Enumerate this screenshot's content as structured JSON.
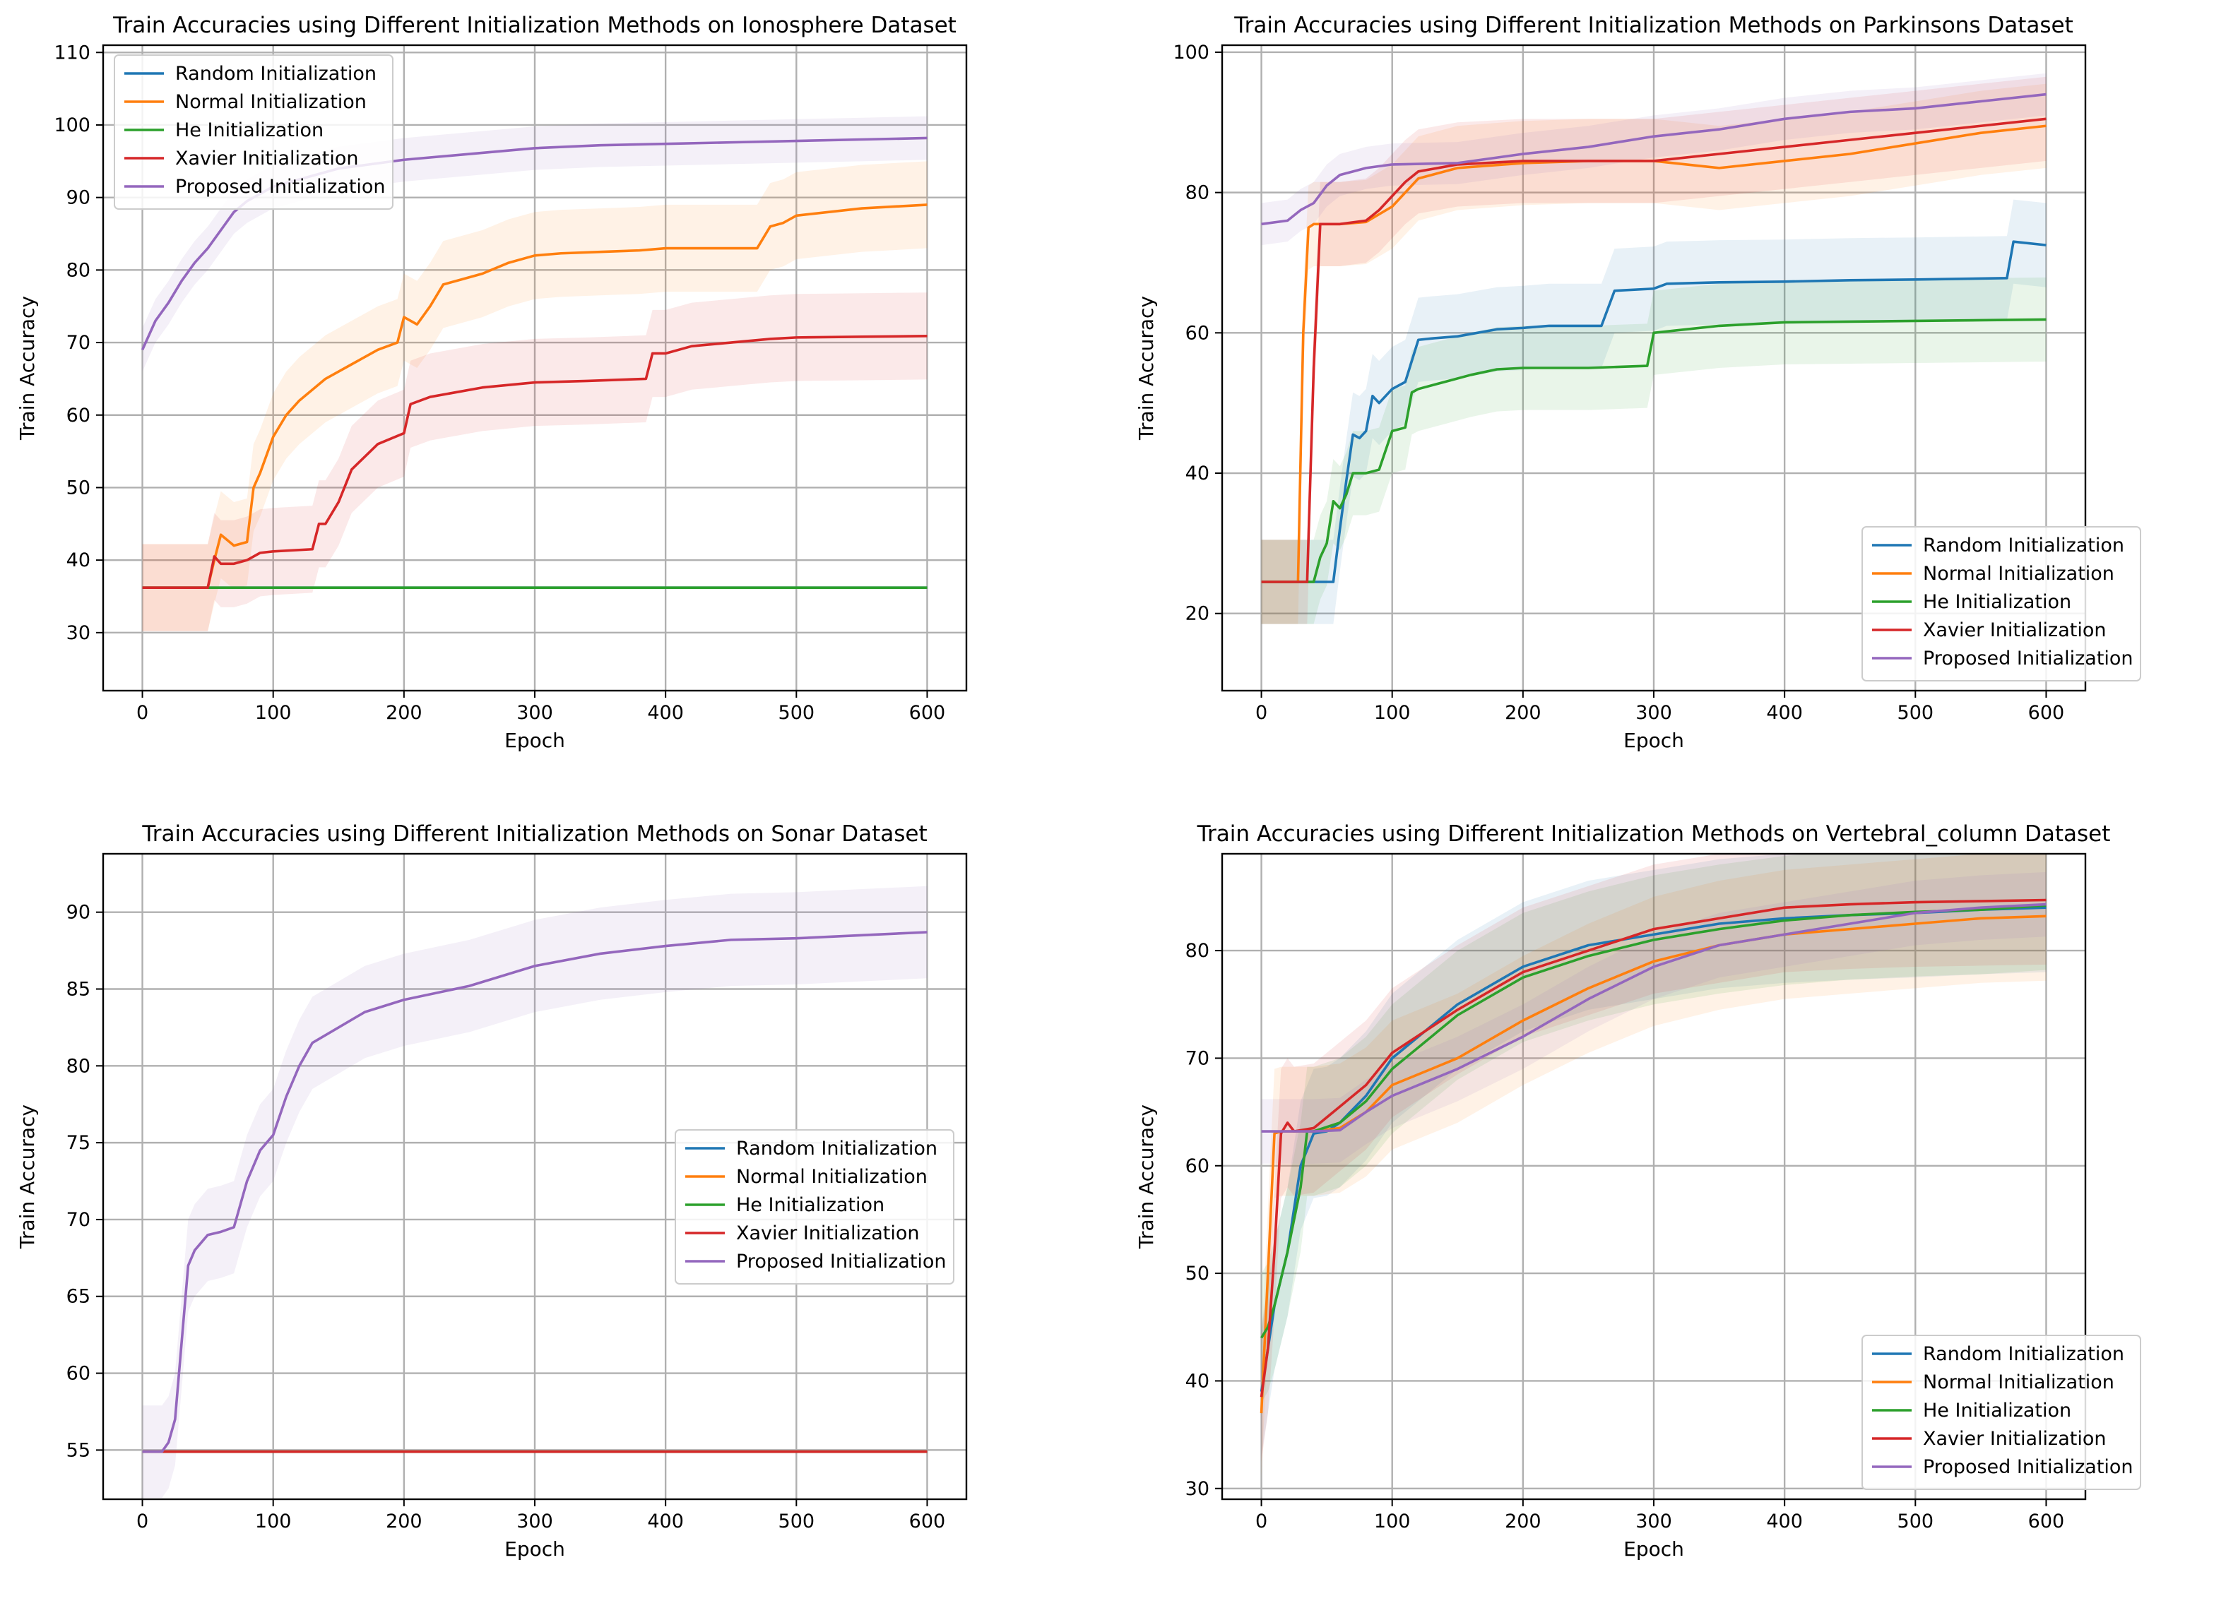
{
  "colors": {
    "random": "#1f77b4",
    "normal": "#ff7f0e",
    "he": "#2ca02c",
    "xavier": "#d62728",
    "proposed": "#9467bd",
    "grid": "#b0b0b0"
  },
  "chart_data": [
    {
      "type": "line",
      "title": "Train Accuracies using Different Initialization Methods on Ionosphere Dataset",
      "xlabel": "Epoch",
      "ylabel": "Train Accuracy",
      "xlim": [
        -30,
        630
      ],
      "ylim": [
        22,
        111
      ],
      "xticks": [
        0,
        100,
        200,
        300,
        400,
        500,
        600
      ],
      "yticks": [
        30,
        40,
        50,
        60,
        70,
        80,
        90,
        100,
        110
      ],
      "grid": true,
      "legend_position": "upper-left",
      "series": [
        {
          "name": "Random Initialization",
          "key": "random",
          "x": [
            0,
            600
          ],
          "y": [
            36.2,
            36.2
          ]
        },
        {
          "name": "Normal Initialization",
          "key": "normal",
          "x": [
            0,
            50,
            55,
            60,
            70,
            80,
            85,
            90,
            100,
            110,
            120,
            140,
            160,
            180,
            195,
            200,
            210,
            220,
            230,
            240,
            260,
            280,
            300,
            320,
            350,
            380,
            400,
            420,
            470,
            480,
            490,
            500,
            550,
            600
          ],
          "y": [
            36.2,
            36.2,
            40,
            43.5,
            42,
            42.5,
            50,
            52,
            57,
            60,
            62,
            65,
            67,
            69,
            70,
            73.5,
            72.5,
            75,
            78,
            78.5,
            79.5,
            81,
            82,
            82.3,
            82.5,
            82.7,
            83,
            83,
            83,
            86,
            86.5,
            87.5,
            88.5,
            89
          ]
        },
        {
          "name": "He Initialization",
          "key": "he",
          "x": [
            0,
            600
          ],
          "y": [
            36.2,
            36.2
          ]
        },
        {
          "name": "Xavier Initialization",
          "key": "xavier",
          "x": [
            0,
            50,
            55,
            60,
            70,
            80,
            90,
            100,
            130,
            135,
            140,
            150,
            160,
            180,
            200,
            205,
            220,
            260,
            300,
            340,
            385,
            390,
            400,
            420,
            450,
            480,
            500,
            550,
            600
          ],
          "y": [
            36.2,
            36.2,
            40.5,
            39.5,
            39.5,
            40,
            41,
            41.2,
            41.5,
            45,
            45,
            48,
            52.5,
            56,
            57.5,
            61.5,
            62.5,
            63.8,
            64.5,
            64.7,
            65,
            68.5,
            68.5,
            69.5,
            70,
            70.5,
            70.7,
            70.8,
            70.9
          ]
        },
        {
          "name": "Proposed Initialization",
          "key": "proposed",
          "x": [
            0,
            10,
            20,
            30,
            40,
            50,
            60,
            70,
            80,
            100,
            150,
            200,
            250,
            300,
            350,
            400,
            450,
            500,
            550,
            600
          ],
          "y": [
            69,
            73,
            75.5,
            78.5,
            81,
            83,
            85.5,
            88,
            89.5,
            91.5,
            94,
            95.2,
            96,
            96.8,
            97.2,
            97.4,
            97.6,
            97.8,
            98,
            98.2
          ]
        }
      ]
    },
    {
      "type": "line",
      "title": "Train Accuracies using Different Initialization Methods on Parkinsons Dataset",
      "xlabel": "Epoch",
      "ylabel": "Train Accuracy",
      "xlim": [
        -30,
        630
      ],
      "ylim": [
        9,
        101
      ],
      "xticks": [
        0,
        100,
        200,
        300,
        400,
        500,
        600
      ],
      "yticks": [
        20,
        40,
        60,
        80,
        100
      ],
      "grid": true,
      "legend_position": "lower-right",
      "series": [
        {
          "name": "Random Initialization",
          "key": "random",
          "x": [
            0,
            55,
            60,
            65,
            70,
            75,
            80,
            85,
            90,
            100,
            110,
            115,
            120,
            130,
            150,
            180,
            200,
            220,
            260,
            270,
            300,
            310,
            350,
            400,
            450,
            500,
            570,
            575,
            600
          ],
          "y": [
            24.5,
            24.5,
            32,
            39,
            45.5,
            45,
            46,
            51,
            50,
            52,
            53,
            56,
            59,
            59.2,
            59.5,
            60.5,
            60.7,
            61,
            61,
            66,
            66.3,
            67,
            67.2,
            67.3,
            67.5,
            67.6,
            67.8,
            73,
            72.5
          ]
        },
        {
          "name": "Normal Initialization",
          "key": "normal",
          "x": [
            0,
            28,
            32,
            36,
            40,
            60,
            80,
            100,
            120,
            150,
            200,
            250,
            300,
            350,
            400,
            450,
            500,
            550,
            600
          ],
          "y": [
            24.5,
            24.5,
            60,
            75,
            75.5,
            75.5,
            75.8,
            78,
            82,
            83.5,
            84.2,
            84.5,
            84.5,
            83.5,
            84.5,
            85.5,
            87,
            88.5,
            89.5
          ]
        },
        {
          "name": "He Initialization",
          "key": "he",
          "x": [
            0,
            40,
            45,
            50,
            55,
            60,
            65,
            70,
            80,
            90,
            100,
            110,
            115,
            120,
            140,
            160,
            180,
            200,
            250,
            295,
            300,
            350,
            400,
            450,
            500,
            550,
            600
          ],
          "y": [
            24.5,
            24.5,
            28,
            30,
            36,
            35,
            37,
            40,
            40,
            40.5,
            46,
            46.5,
            51.5,
            52,
            53,
            54,
            54.8,
            55,
            55,
            55.3,
            60,
            61,
            61.5,
            61.6,
            61.7,
            61.8,
            61.9
          ]
        },
        {
          "name": "Xavier Initialization",
          "key": "xavier",
          "x": [
            0,
            35,
            40,
            45,
            50,
            60,
            80,
            90,
            100,
            110,
            120,
            150,
            200,
            250,
            300,
            350,
            400,
            450,
            500,
            550,
            600
          ],
          "y": [
            24.5,
            24.5,
            55,
            75.5,
            75.5,
            75.5,
            76,
            77.5,
            79.5,
            81.5,
            83,
            84,
            84.5,
            84.5,
            84.5,
            85.5,
            86.5,
            87.5,
            88.5,
            89.5,
            90.5
          ]
        },
        {
          "name": "Proposed Initialization",
          "key": "proposed",
          "x": [
            0,
            20,
            30,
            40,
            50,
            60,
            70,
            80,
            100,
            150,
            200,
            250,
            300,
            350,
            400,
            450,
            500,
            550,
            600
          ],
          "y": [
            75.5,
            76,
            77.5,
            78.5,
            81,
            82.5,
            83,
            83.5,
            84,
            84.2,
            85.5,
            86.5,
            88,
            89,
            90.5,
            91.5,
            92,
            93,
            94
          ]
        }
      ]
    },
    {
      "type": "line",
      "title": "Train Accuracies using Different Initialization Methods on Sonar Dataset",
      "xlabel": "Epoch",
      "ylabel": "Train Accuracy",
      "xlim": [
        -30,
        630
      ],
      "ylim": [
        51.8,
        93.8
      ],
      "xticks": [
        0,
        100,
        200,
        300,
        400,
        500,
        600
      ],
      "yticks": [
        55,
        60,
        65,
        70,
        75,
        80,
        85,
        90
      ],
      "grid": true,
      "legend_position": "center-right",
      "series": [
        {
          "name": "Random Initialization",
          "key": "random",
          "x": [
            0,
            600
          ],
          "y": [
            54.9,
            54.9
          ]
        },
        {
          "name": "Normal Initialization",
          "key": "normal",
          "x": [
            0,
            600
          ],
          "y": [
            54.9,
            54.9
          ]
        },
        {
          "name": "He Initialization",
          "key": "he",
          "x": [
            0,
            600
          ],
          "y": [
            54.9,
            54.9
          ]
        },
        {
          "name": "Xavier Initialization",
          "key": "xavier",
          "x": [
            0,
            600
          ],
          "y": [
            54.9,
            54.9
          ]
        },
        {
          "name": "Proposed Initialization",
          "key": "proposed",
          "x": [
            0,
            15,
            20,
            25,
            30,
            35,
            40,
            45,
            50,
            60,
            70,
            80,
            90,
            100,
            110,
            120,
            130,
            150,
            170,
            200,
            250,
            300,
            350,
            400,
            450,
            500,
            550,
            600
          ],
          "y": [
            54.9,
            54.9,
            55.5,
            57,
            62,
            67,
            68,
            68.5,
            69,
            69.2,
            69.5,
            72.5,
            74.5,
            75.5,
            78,
            80,
            81.5,
            82.5,
            83.5,
            84.3,
            85.2,
            86.5,
            87.3,
            87.8,
            88.2,
            88.3,
            88.5,
            88.7
          ]
        }
      ]
    },
    {
      "type": "line",
      "title": "Train Accuracies using Different Initialization Methods on Vertebral_column Dataset",
      "xlabel": "Epoch",
      "ylabel": "Train Accuracy",
      "xlim": [
        -30,
        630
      ],
      "ylim": [
        29,
        89
      ],
      "xticks": [
        0,
        100,
        200,
        300,
        400,
        500,
        600
      ],
      "yticks": [
        30,
        40,
        50,
        60,
        70,
        80
      ],
      "grid": true,
      "legend_position": "lower-right",
      "series": [
        {
          "name": "Random Initialization",
          "key": "random",
          "x": [
            0,
            5,
            10,
            20,
            30,
            40,
            50,
            60,
            80,
            100,
            150,
            200,
            250,
            300,
            350,
            400,
            450,
            500,
            550,
            600
          ],
          "y": [
            39,
            43,
            47,
            52,
            60,
            63,
            63.2,
            64,
            66.5,
            70,
            75,
            78.5,
            80.5,
            81.5,
            82.5,
            83,
            83.3,
            83.5,
            83.8,
            84
          ]
        },
        {
          "name": "Normal Initialization",
          "key": "normal",
          "x": [
            0,
            5,
            10,
            15,
            20,
            40,
            60,
            80,
            100,
            150,
            200,
            250,
            300,
            350,
            400,
            450,
            500,
            550,
            600
          ],
          "y": [
            37,
            50,
            63,
            63.2,
            63.2,
            63.2,
            63.5,
            65,
            67.5,
            70,
            73.5,
            76.5,
            79,
            80.5,
            81.5,
            82,
            82.5,
            83,
            83.2
          ]
        },
        {
          "name": "He Initialization",
          "key": "he",
          "x": [
            0,
            5,
            10,
            20,
            30,
            35,
            40,
            60,
            80,
            100,
            150,
            200,
            250,
            300,
            350,
            400,
            450,
            500,
            550,
            600
          ],
          "y": [
            44,
            45,
            47,
            52,
            58,
            63.2,
            63.2,
            64,
            66,
            69,
            74,
            77.5,
            79.5,
            81,
            82,
            82.8,
            83.3,
            83.6,
            83.8,
            84.2
          ]
        },
        {
          "name": "Xavier Initialization",
          "key": "xavier",
          "x": [
            0,
            5,
            10,
            15,
            20,
            25,
            40,
            60,
            80,
            100,
            150,
            200,
            250,
            300,
            350,
            400,
            450,
            500,
            550,
            600
          ],
          "y": [
            38.5,
            43,
            52,
            63,
            64,
            63.2,
            63.5,
            65.5,
            67.5,
            70.5,
            74.5,
            78,
            80,
            82,
            83,
            84,
            84.3,
            84.5,
            84.6,
            84.7
          ]
        },
        {
          "name": "Proposed Initialization",
          "key": "proposed",
          "x": [
            0,
            40,
            60,
            80,
            100,
            150,
            200,
            250,
            300,
            350,
            400,
            450,
            500,
            550,
            600
          ],
          "y": [
            63.2,
            63.2,
            63.3,
            65,
            66.5,
            69,
            72,
            75.5,
            78.5,
            80.5,
            81.5,
            82.5,
            83.5,
            84,
            84.3
          ]
        }
      ]
    }
  ]
}
